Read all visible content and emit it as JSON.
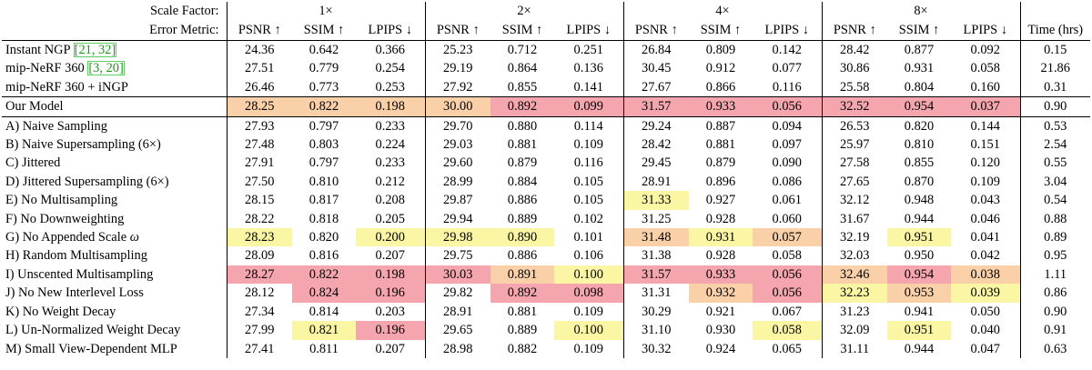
{
  "header": {
    "scale_label": "Scale Factor:",
    "metric_label": "Error Metric:",
    "scales": [
      "1×",
      "2×",
      "4×",
      "8×"
    ],
    "metrics": [
      "PSNR ↑",
      "SSIM ↑",
      "LPIPS ↓"
    ],
    "time_label": "Time (hrs)"
  },
  "colors": {
    "red": "#f4a5ad",
    "orange": "#f9d0a8",
    "yellow": "#fbf6a4"
  },
  "rows": [
    {
      "name": "Instant NGP",
      "cites": [
        "21",
        "32"
      ],
      "values": [
        "24.36",
        "0.642",
        "0.366",
        "25.23",
        "0.712",
        "0.251",
        "26.84",
        "0.809",
        "0.142",
        "28.42",
        "0.877",
        "0.092"
      ],
      "time": "0.15",
      "colors": [
        "",
        "",
        "",
        "",
        "",
        "",
        "",
        "",
        "",
        "",
        "",
        ""
      ]
    },
    {
      "name": "mip-NeRF 360",
      "cites": [
        "3",
        "20"
      ],
      "values": [
        "27.51",
        "0.779",
        "0.254",
        "29.19",
        "0.864",
        "0.136",
        "30.45",
        "0.912",
        "0.077",
        "30.86",
        "0.931",
        "0.058"
      ],
      "time": "21.86",
      "colors": [
        "",
        "",
        "",
        "",
        "",
        "",
        "",
        "",
        "",
        "",
        "",
        ""
      ]
    },
    {
      "name": "mip-NeRF 360 + iNGP",
      "values": [
        "26.46",
        "0.773",
        "0.253",
        "27.92",
        "0.855",
        "0.141",
        "27.67",
        "0.866",
        "0.116",
        "25.58",
        "0.804",
        "0.160"
      ],
      "time": "0.31",
      "colors": [
        "",
        "",
        "",
        "",
        "",
        "",
        "",
        "",
        "",
        "",
        "",
        ""
      ]
    },
    {
      "name": "Our Model",
      "values": [
        "28.25",
        "0.822",
        "0.198",
        "30.00",
        "0.892",
        "0.099",
        "31.57",
        "0.933",
        "0.056",
        "32.52",
        "0.954",
        "0.037"
      ],
      "time": "0.90",
      "colors": [
        "orange",
        "orange",
        "orange",
        "orange",
        "red",
        "red",
        "red",
        "red",
        "red",
        "red",
        "red",
        "red"
      ],
      "ours": true
    },
    {
      "name": "A) Naive Sampling",
      "values": [
        "27.93",
        "0.797",
        "0.233",
        "29.70",
        "0.880",
        "0.114",
        "29.24",
        "0.887",
        "0.094",
        "26.53",
        "0.820",
        "0.144"
      ],
      "time": "0.53",
      "colors": [
        "",
        "",
        "",
        "",
        "",
        "",
        "",
        "",
        "",
        "",
        "",
        ""
      ]
    },
    {
      "name": "B) Naive Supersampling (6×)",
      "values": [
        "27.48",
        "0.803",
        "0.224",
        "29.03",
        "0.881",
        "0.109",
        "28.42",
        "0.881",
        "0.097",
        "25.97",
        "0.810",
        "0.151"
      ],
      "time": "2.54",
      "colors": [
        "",
        "",
        "",
        "",
        "",
        "",
        "",
        "",
        "",
        "",
        "",
        ""
      ]
    },
    {
      "name": "C) Jittered",
      "values": [
        "27.91",
        "0.797",
        "0.233",
        "29.60",
        "0.879",
        "0.116",
        "29.45",
        "0.879",
        "0.090",
        "27.58",
        "0.855",
        "0.120"
      ],
      "time": "0.55",
      "colors": [
        "",
        "",
        "",
        "",
        "",
        "",
        "",
        "",
        "",
        "",
        "",
        ""
      ]
    },
    {
      "name": "D) Jittered Supersampling (6×)",
      "values": [
        "27.50",
        "0.810",
        "0.212",
        "28.99",
        "0.884",
        "0.105",
        "28.91",
        "0.896",
        "0.086",
        "27.65",
        "0.870",
        "0.109"
      ],
      "time": "3.04",
      "colors": [
        "",
        "",
        "",
        "",
        "",
        "",
        "",
        "",
        "",
        "",
        "",
        ""
      ]
    },
    {
      "name": "E) No Multisampling",
      "values": [
        "28.15",
        "0.817",
        "0.208",
        "29.87",
        "0.886",
        "0.105",
        "31.33",
        "0.927",
        "0.061",
        "32.12",
        "0.948",
        "0.043"
      ],
      "time": "0.54",
      "colors": [
        "",
        "",
        "",
        "",
        "",
        "",
        "yellow",
        "",
        "",
        "",
        "",
        ""
      ]
    },
    {
      "name": "F) No Downweighting",
      "values": [
        "28.22",
        "0.818",
        "0.205",
        "29.94",
        "0.889",
        "0.102",
        "31.25",
        "0.928",
        "0.060",
        "31.67",
        "0.944",
        "0.046"
      ],
      "time": "0.88",
      "colors": [
        "",
        "",
        "",
        "",
        "",
        "",
        "",
        "",
        "",
        "",
        "",
        ""
      ]
    },
    {
      "name": "G) No Appended Scale",
      "omega": "ω",
      "values": [
        "28.23",
        "0.820",
        "0.200",
        "29.98",
        "0.890",
        "0.101",
        "31.48",
        "0.931",
        "0.057",
        "32.19",
        "0.951",
        "0.041"
      ],
      "time": "0.89",
      "colors": [
        "yellow",
        "",
        "yellow",
        "yellow",
        "yellow",
        "",
        "orange",
        "yellow",
        "orange",
        "",
        "yellow",
        ""
      ]
    },
    {
      "name": "H) Random Multisampling",
      "values": [
        "28.09",
        "0.816",
        "0.207",
        "29.75",
        "0.886",
        "0.106",
        "31.38",
        "0.928",
        "0.058",
        "32.03",
        "0.950",
        "0.042"
      ],
      "time": "0.95",
      "colors": [
        "",
        "",
        "",
        "",
        "",
        "",
        "",
        "",
        "",
        "",
        "",
        ""
      ]
    },
    {
      "name": "I) Unscented Multisampling",
      "values": [
        "28.27",
        "0.822",
        "0.198",
        "30.03",
        "0.891",
        "0.100",
        "31.57",
        "0.933",
        "0.056",
        "32.46",
        "0.954",
        "0.038"
      ],
      "time": "1.11",
      "colors": [
        "red",
        "red",
        "red",
        "red",
        "orange",
        "yellow",
        "red",
        "red",
        "red",
        "orange",
        "red",
        "orange"
      ]
    },
    {
      "name": "J) No New Interlevel Loss",
      "values": [
        "28.12",
        "0.824",
        "0.196",
        "29.82",
        "0.892",
        "0.098",
        "31.31",
        "0.932",
        "0.056",
        "32.23",
        "0.953",
        "0.039"
      ],
      "time": "0.86",
      "colors": [
        "",
        "red",
        "red",
        "",
        "red",
        "red",
        "",
        "orange",
        "red",
        "yellow",
        "orange",
        "yellow"
      ]
    },
    {
      "name": "K) No Weight Decay",
      "values": [
        "27.34",
        "0.814",
        "0.203",
        "28.91",
        "0.881",
        "0.109",
        "30.29",
        "0.921",
        "0.067",
        "31.23",
        "0.941",
        "0.050"
      ],
      "time": "0.90",
      "colors": [
        "",
        "",
        "",
        "",
        "",
        "",
        "",
        "",
        "",
        "",
        "",
        ""
      ]
    },
    {
      "name": "L) Un-Normalized Weight Decay",
      "values": [
        "27.99",
        "0.821",
        "0.196",
        "29.65",
        "0.889",
        "0.100",
        "31.10",
        "0.930",
        "0.058",
        "32.09",
        "0.951",
        "0.040"
      ],
      "time": "0.91",
      "colors": [
        "",
        "yellow",
        "red",
        "",
        "",
        "yellow",
        "",
        "",
        "yellow",
        "",
        "yellow",
        ""
      ]
    },
    {
      "name": "M) Small View-Dependent MLP",
      "values": [
        "27.41",
        "0.811",
        "0.207",
        "28.98",
        "0.882",
        "0.109",
        "30.32",
        "0.924",
        "0.065",
        "31.11",
        "0.944",
        "0.047"
      ],
      "time": "0.63",
      "colors": [
        "",
        "",
        "",
        "",
        "",
        "",
        "",
        "",
        "",
        "",
        "",
        ""
      ]
    }
  ]
}
